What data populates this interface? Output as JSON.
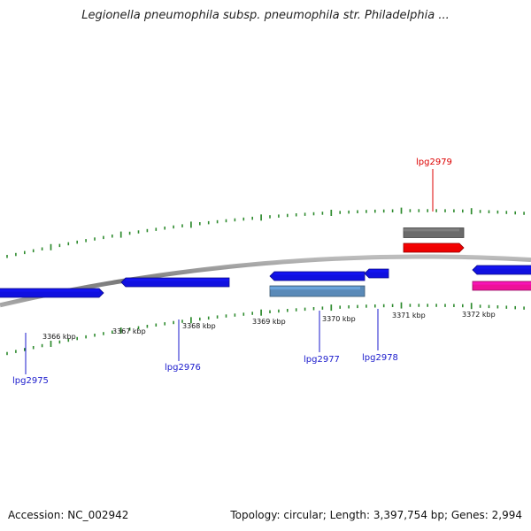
{
  "title": "Legionella pneumophila subsp. pneumophila str. Philadelphia ...",
  "footer": {
    "accession": "Accession: NC_002942",
    "topology": "Topology: circular; Length: 3,397,754 bp; Genes: 2,994"
  },
  "colors": {
    "backbone": "#8a8a8a",
    "tick": "#2e8b2e",
    "gene_blue": "#1010e0",
    "gene_steelblue": "#5a8ab8",
    "gene_gray": "#6b6b6b",
    "gene_red": "#ee0000",
    "gene_pink": "#ee1199",
    "label_blue": "#1a1acc",
    "label_red": "#dd0000"
  },
  "scale_labels": [
    "3366 kbp",
    "3367 kbp",
    "3368 kbp",
    "3369 kbp",
    "3370 kbp",
    "3371 kbp",
    "3372 kbp"
  ],
  "features": [
    {
      "id": "f1",
      "color": "gene_blue",
      "strand": "forward"
    },
    {
      "id": "f2",
      "color": "gene_blue",
      "strand": "reverse"
    },
    {
      "id": "f3",
      "color": "gene_blue",
      "strand": "reverse"
    },
    {
      "id": "f4",
      "color": "gene_blue",
      "strand": "reverse"
    },
    {
      "id": "f5",
      "color": "gene_blue",
      "strand": "reverse"
    },
    {
      "id": "f6",
      "color": "gene_steelblue",
      "strand": "none"
    },
    {
      "id": "f7",
      "color": "gene_gray",
      "strand": "none"
    },
    {
      "id": "f8",
      "color": "gene_red",
      "strand": "forward"
    },
    {
      "id": "f9",
      "color": "gene_pink",
      "strand": "none"
    }
  ],
  "gene_labels": [
    {
      "text": "lpg2975",
      "color": "label_blue"
    },
    {
      "text": "lpg2976",
      "color": "label_blue"
    },
    {
      "text": "lpg2977",
      "color": "label_blue"
    },
    {
      "text": "lpg2978",
      "color": "label_blue"
    },
    {
      "text": "lpg2979",
      "color": "label_red"
    }
  ]
}
